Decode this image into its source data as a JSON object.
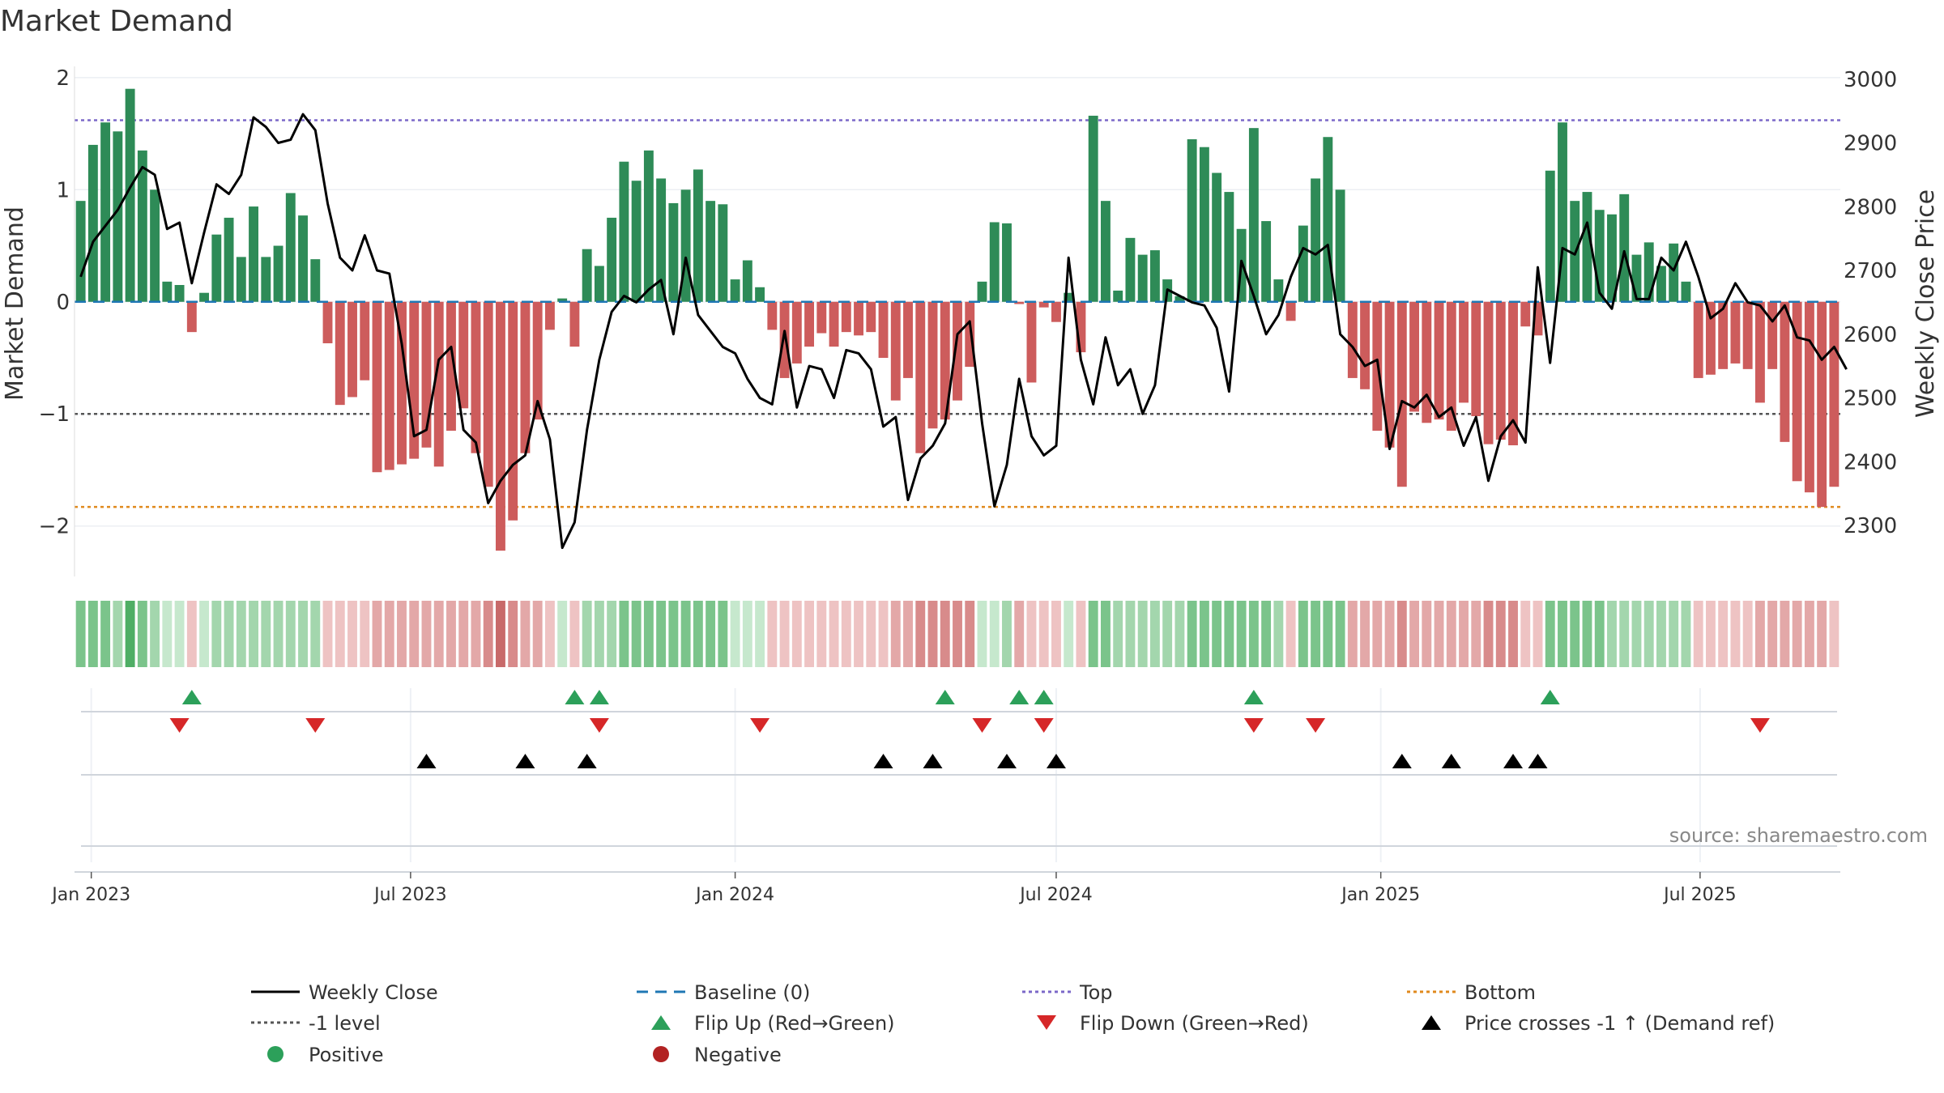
{
  "chart_data": {
    "type": "bar+line",
    "title": "Market Demand",
    "ylabel_left": "Market Demand",
    "ylabel_right": "Weekly Close Price",
    "source": "source: sharemaestro.com",
    "ylim_left": [
      -2.45,
      2.1
    ],
    "ylim_right": [
      2220,
      3020
    ],
    "left_ticks": [
      {
        "v": 2,
        "label": "2"
      },
      {
        "v": 1,
        "label": "1"
      },
      {
        "v": 0,
        "label": "0"
      },
      {
        "v": -1,
        "label": "−1"
      },
      {
        "v": -2,
        "label": "−2"
      }
    ],
    "right_ticks": [
      {
        "v": 3000,
        "label": "3000"
      },
      {
        "v": 2900,
        "label": "2900"
      },
      {
        "v": 2800,
        "label": "2800"
      },
      {
        "v": 2700,
        "label": "2700"
      },
      {
        "v": 2600,
        "label": "2600"
      },
      {
        "v": 2500,
        "label": "2500"
      },
      {
        "v": 2400,
        "label": "2400"
      },
      {
        "v": 2300,
        "label": "2300"
      }
    ],
    "reference_lines": {
      "top": 1.62,
      "bottom": -1.83,
      "minus_one": -1,
      "baseline": 0
    },
    "start_date": "2022-12-26",
    "end_date": "2025-09-15",
    "x_ticks": [
      {
        "date": "2023-01-01",
        "label": "Jan 2023"
      },
      {
        "date": "2023-07-01",
        "label": "Jul 2023"
      },
      {
        "date": "2024-01-01",
        "label": "Jan 2024"
      },
      {
        "date": "2024-07-01",
        "label": "Jul 2024"
      },
      {
        "date": "2025-01-01",
        "label": "Jan 2025"
      },
      {
        "date": "2025-07-01",
        "label": "Jul 2025"
      }
    ],
    "demand": [
      0.9,
      1.4,
      1.6,
      1.52,
      1.9,
      1.35,
      1.0,
      0.18,
      0.15,
      -0.27,
      0.08,
      0.6,
      0.75,
      0.4,
      0.85,
      0.4,
      0.5,
      0.97,
      0.77,
      0.38,
      -0.37,
      -0.92,
      -0.85,
      -0.7,
      -1.52,
      -1.5,
      -1.45,
      -1.4,
      -1.3,
      -1.47,
      -1.15,
      -0.95,
      -1.35,
      -1.65,
      -2.22,
      -1.95,
      -1.35,
      -1.05,
      -0.25,
      0.03,
      -0.4,
      0.47,
      0.32,
      0.75,
      1.25,
      1.08,
      1.35,
      1.1,
      0.88,
      1.0,
      1.18,
      0.9,
      0.87,
      0.2,
      0.37,
      0.13,
      -0.25,
      -0.68,
      -0.55,
      -0.4,
      -0.28,
      -0.4,
      -0.27,
      -0.3,
      -0.27,
      -0.5,
      -0.88,
      -0.68,
      -1.35,
      -1.13,
      -1.05,
      -0.88,
      -0.58,
      0.18,
      0.71,
      0.7,
      -0.02,
      -0.72,
      -0.05,
      -0.18,
      0.08,
      -0.45,
      1.66,
      0.9,
      0.1,
      0.57,
      0.42,
      0.46,
      0.2,
      0.05,
      1.45,
      1.38,
      1.15,
      0.98,
      0.65,
      1.55,
      0.72,
      0.2,
      -0.17,
      0.68,
      1.1,
      1.47,
      1.0,
      -0.68,
      -0.78,
      -1.15,
      -1.3,
      -1.65,
      -0.98,
      -1.08,
      -1.05,
      -1.15,
      -0.9,
      -1.02,
      -1.27,
      -1.23,
      -1.28,
      -0.22,
      -0.3,
      1.17,
      1.6,
      0.9,
      0.98,
      0.82,
      0.78,
      0.96,
      0.42,
      0.53,
      0.32,
      0.52,
      0.18,
      -0.68,
      -0.65,
      -0.6,
      -0.55,
      -0.6,
      -0.9,
      -0.6,
      -1.25,
      -1.6,
      -1.7,
      -1.83,
      -1.65
    ],
    "close": [
      2690,
      2745,
      2770,
      2795,
      2830,
      2862,
      2850,
      2765,
      2775,
      2680,
      2760,
      2835,
      2820,
      2850,
      2940,
      2925,
      2900,
      2905,
      2945,
      2920,
      2805,
      2720,
      2700,
      2755,
      2700,
      2695,
      2585,
      2440,
      2450,
      2560,
      2580,
      2450,
      2430,
      2335,
      2370,
      2395,
      2410,
      2495,
      2435,
      2265,
      2305,
      2450,
      2560,
      2635,
      2660,
      2650,
      2670,
      2685,
      2600,
      2720,
      2630,
      2605,
      2580,
      2570,
      2530,
      2500,
      2490,
      2605,
      2485,
      2550,
      2545,
      2500,
      2575,
      2570,
      2545,
      2455,
      2470,
      2340,
      2405,
      2425,
      2460,
      2600,
      2620,
      2460,
      2330,
      2395,
      2530,
      2440,
      2410,
      2425,
      2720,
      2560,
      2490,
      2595,
      2520,
      2545,
      2475,
      2520,
      2670,
      2660,
      2650,
      2645,
      2610,
      2510,
      2715,
      2660,
      2600,
      2630,
      2690,
      2735,
      2725,
      2740,
      2600,
      2580,
      2550,
      2560,
      2420,
      2495,
      2485,
      2505,
      2470,
      2485,
      2425,
      2470,
      2370,
      2440,
      2465,
      2430,
      2705,
      2555,
      2735,
      2725,
      2775,
      2665,
      2640,
      2730,
      2655,
      2655,
      2720,
      2700,
      2745,
      2690,
      2625,
      2640,
      2680,
      2650,
      2645,
      2620,
      2645,
      2595,
      2590,
      2560,
      2580,
      2545
    ],
    "heat_shades": [
      2,
      2,
      2,
      1,
      3,
      2,
      1,
      0,
      0,
      0,
      0,
      1,
      1,
      1,
      1,
      1,
      1,
      1,
      1,
      1,
      0,
      0,
      0,
      0,
      1,
      1,
      1,
      1,
      1,
      1,
      1,
      1,
      1,
      2,
      3,
      2,
      1,
      1,
      0,
      0,
      0,
      1,
      1,
      1,
      2,
      2,
      2,
      2,
      2,
      2,
      2,
      2,
      2,
      0,
      0,
      0,
      0,
      0,
      0,
      0,
      0,
      0,
      0,
      0,
      0,
      0,
      1,
      1,
      2,
      2,
      2,
      2,
      2,
      0,
      0,
      1,
      1,
      0,
      0,
      0,
      0,
      0,
      2,
      2,
      1,
      1,
      1,
      1,
      1,
      1,
      2,
      2,
      2,
      2,
      2,
      2,
      2,
      1,
      0,
      2,
      2,
      2,
      2,
      1,
      1,
      1,
      1,
      2,
      1,
      1,
      1,
      1,
      1,
      1,
      2,
      2,
      2,
      0,
      0,
      2,
      2,
      2,
      2,
      2,
      1,
      1,
      1,
      1,
      1,
      1,
      1,
      0,
      0,
      0,
      0,
      0,
      1,
      1,
      1,
      1,
      1,
      1
    ],
    "flip_up": [
      "2023-02-27",
      "2023-10-02",
      "2023-10-16",
      "2024-04-29",
      "2024-06-10",
      "2024-06-24",
      "2024-10-21",
      "2025-04-07"
    ],
    "flip_down": [
      "2023-02-20",
      "2023-05-08",
      "2023-10-16",
      "2024-01-15",
      "2024-05-20",
      "2024-06-24",
      "2024-10-21",
      "2024-11-25",
      "2025-08-04"
    ],
    "price_crosses": [
      "2023-07-10",
      "2023-09-04",
      "2023-10-09",
      "2024-03-25",
      "2024-04-22",
      "2024-06-03",
      "2024-07-01",
      "2025-01-13",
      "2025-02-10",
      "2025-03-17",
      "2025-03-31"
    ],
    "legend": [
      {
        "label": "Weekly Close",
        "style": "black-line"
      },
      {
        "label": "Baseline (0)",
        "style": "blue-dash"
      },
      {
        "label": "Top",
        "style": "purple-dot"
      },
      {
        "label": "Bottom",
        "style": "orange-dot"
      },
      {
        "label": "-1 level",
        "style": "grey-dot"
      },
      {
        "label": "Flip Up (Red→Green)",
        "style": "green-triangle-up"
      },
      {
        "label": "Flip Down (Green→Red)",
        "style": "red-triangle-down"
      },
      {
        "label": "Price crosses -1 ↑ (Demand ref)",
        "style": "black-triangle-up"
      },
      {
        "label": "Positive",
        "style": "green-dot"
      },
      {
        "label": "Negative",
        "style": "red-dot"
      }
    ],
    "colors": {
      "positive_bar": "#2e8b57",
      "negative_bar": "#cd5c5c",
      "close_line": "#000000",
      "top_line": "#7b68c8",
      "bottom_line": "#e08a1e",
      "minus_one_line": "#555555",
      "baseline": "#1f77b4",
      "flip_up": "#2ca05a",
      "flip_down": "#d62728",
      "cross": "#000000",
      "heat_positive": [
        "#c6e8cd",
        "#a3d6ad",
        "#7bc48b",
        "#4fae65"
      ],
      "heat_negative": [
        "#eec3c3",
        "#e3a8a8",
        "#d88b8b",
        "#c86a6a"
      ]
    }
  }
}
